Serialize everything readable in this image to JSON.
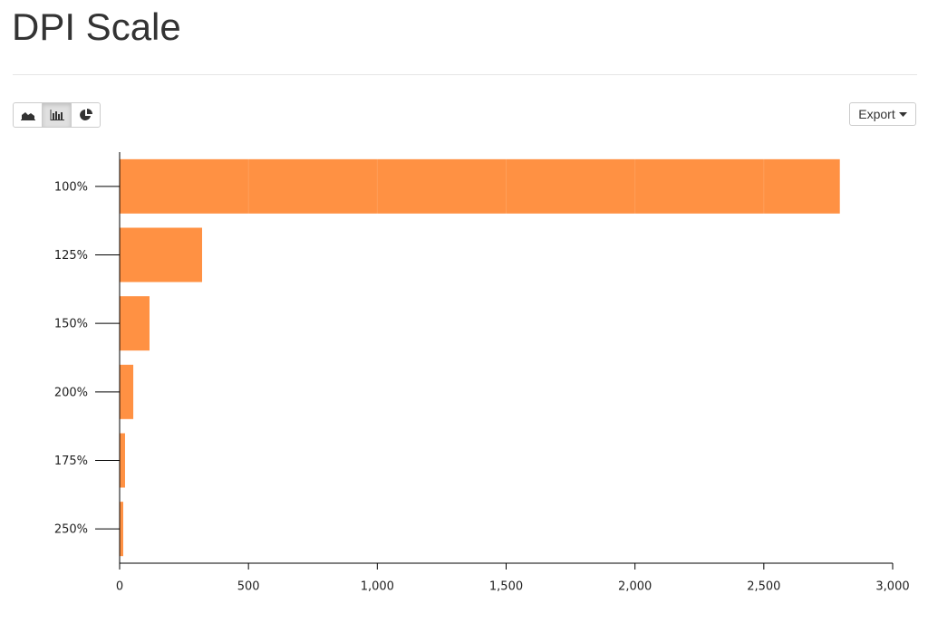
{
  "header": {
    "title": "DPI Scale"
  },
  "toolbar": {
    "export": "Export"
  },
  "chart_data": {
    "type": "hbar",
    "categories": [
      "100%",
      "125%",
      "150%",
      "200%",
      "175%",
      "250%"
    ],
    "values": [
      2795,
      320,
      116,
      53,
      21,
      14
    ],
    "color": "#ff8833",
    "xlim": [
      0,
      3000
    ],
    "xticks": [
      0,
      500,
      {
        "value": 1000,
        "label": "1,000"
      },
      {
        "value": 1500,
        "label": "1,500"
      },
      {
        "value": 2000,
        "label": "2,000"
      },
      {
        "value": 2500,
        "label": "2,500"
      },
      {
        "value": 3000,
        "label": "3,000"
      }
    ],
    "grid": true
  }
}
